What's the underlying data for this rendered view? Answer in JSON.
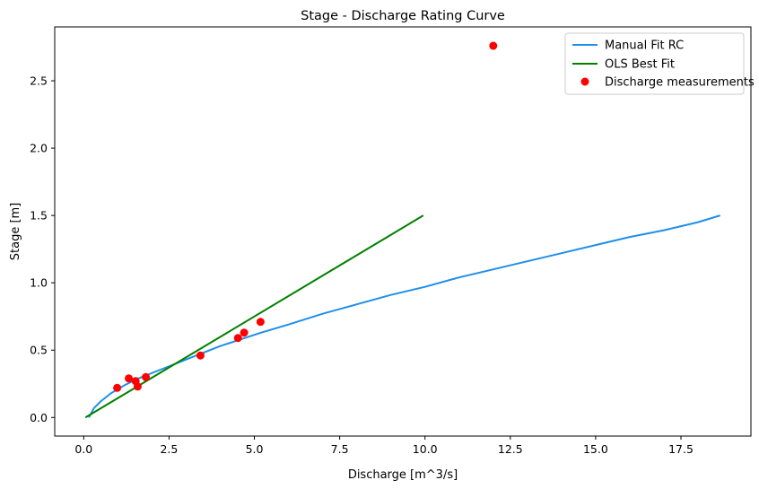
{
  "chart_data": {
    "type": "line",
    "title": "Stage - Discharge Rating Curve",
    "xlabel": "Discharge [m^3/s]",
    "ylabel": "Stage [m]",
    "xlim": [
      -0.85,
      19.55
    ],
    "ylim": [
      -0.138,
      2.9
    ],
    "xticks": [
      0.0,
      2.5,
      5.0,
      7.5,
      10.0,
      12.5,
      15.0,
      17.5
    ],
    "xtick_labels": [
      "0.0",
      "2.5",
      "5.0",
      "7.5",
      "10.0",
      "12.5",
      "15.0",
      "17.5"
    ],
    "yticks": [
      0.0,
      0.5,
      1.0,
      1.5,
      2.0,
      2.5
    ],
    "ytick_labels": [
      "0.0",
      "0.5",
      "1.0",
      "1.5",
      "2.0",
      "2.5"
    ],
    "grid": false,
    "legend": {
      "position": "top-right",
      "entries": [
        "Manual Fit RC",
        "OLS Best Fit",
        "Discharge measurements"
      ]
    },
    "series": [
      {
        "name": "Manual Fit RC",
        "kind": "line",
        "color": "#1f8fe8",
        "x": [
          0.15,
          0.3,
          0.5,
          0.8,
          1.2,
          1.6,
          2.0,
          2.5,
          3.0,
          3.5,
          4.0,
          4.6,
          5.2,
          6.0,
          7.0,
          8.0,
          9.0,
          10.0,
          11.0,
          12.0,
          13.0,
          14.0,
          15.0,
          16.0,
          17.0,
          18.0,
          18.65
        ],
        "y": [
          0.0,
          0.07,
          0.12,
          0.18,
          0.24,
          0.29,
          0.33,
          0.38,
          0.43,
          0.48,
          0.53,
          0.58,
          0.63,
          0.69,
          0.77,
          0.84,
          0.91,
          0.97,
          1.04,
          1.1,
          1.16,
          1.22,
          1.28,
          1.34,
          1.39,
          1.45,
          1.5
        ]
      },
      {
        "name": "OLS Best Fit",
        "kind": "line",
        "color": "#008000",
        "x": [
          0.05,
          9.95
        ],
        "y": [
          0.0,
          1.5
        ]
      },
      {
        "name": "Discharge measurements",
        "kind": "scatter",
        "color": "#ff0000",
        "x": [
          0.98,
          1.32,
          1.52,
          1.58,
          1.82,
          3.42,
          4.52,
          4.7,
          5.18,
          12.0
        ],
        "y": [
          0.22,
          0.29,
          0.27,
          0.23,
          0.3,
          0.46,
          0.59,
          0.63,
          0.71,
          2.76
        ]
      }
    ]
  }
}
